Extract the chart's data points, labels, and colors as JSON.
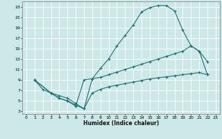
{
  "xlabel": "Humidex (Indice chaleur)",
  "bg_color": "#cce8e8",
  "grid_color": "#ffffff",
  "line_color": "#1a7070",
  "xlim": [
    -0.5,
    23.5
  ],
  "ylim": [
    2.5,
    24
  ],
  "xticks": [
    0,
    1,
    2,
    3,
    4,
    5,
    6,
    7,
    8,
    9,
    10,
    11,
    12,
    13,
    14,
    15,
    16,
    17,
    18,
    19,
    20,
    21,
    22,
    23
  ],
  "yticks": [
    3,
    5,
    7,
    9,
    11,
    13,
    15,
    17,
    19,
    21,
    23
  ],
  "curve1_x": [
    1,
    2,
    3,
    4,
    5,
    6,
    7,
    8,
    9,
    10,
    11,
    12,
    13,
    14,
    15,
    16,
    17,
    18,
    19,
    20,
    21,
    22
  ],
  "curve1_y": [
    9,
    7.2,
    6.5,
    6.0,
    5.5,
    4.5,
    3.5,
    9.2,
    11.2,
    13.0,
    15.5,
    17.5,
    19.5,
    22.0,
    22.8,
    23.2,
    23.2,
    22.2,
    18.5,
    15.5,
    14.5,
    12.5
  ],
  "curve2_x": [
    1,
    3,
    4,
    5,
    6,
    7,
    9,
    10,
    11,
    12,
    13,
    14,
    15,
    16,
    17,
    18,
    19,
    20,
    21,
    22
  ],
  "curve2_y": [
    9,
    6.5,
    5.5,
    5.0,
    4.0,
    9.0,
    9.5,
    10.0,
    10.5,
    11.0,
    11.5,
    12.0,
    12.5,
    13.0,
    13.5,
    14.0,
    14.5,
    15.5,
    14.5,
    10.0
  ],
  "curve3_x": [
    1,
    3,
    4,
    5,
    6,
    7,
    8,
    9,
    10,
    11,
    12,
    13,
    14,
    15,
    16,
    17,
    18,
    19,
    20,
    21,
    22
  ],
  "curve3_y": [
    9,
    6.5,
    5.5,
    5.0,
    4.2,
    3.5,
    6.5,
    7.2,
    7.7,
    8.0,
    8.3,
    8.6,
    8.9,
    9.2,
    9.4,
    9.6,
    9.8,
    10.0,
    10.2,
    10.4,
    10.0
  ]
}
